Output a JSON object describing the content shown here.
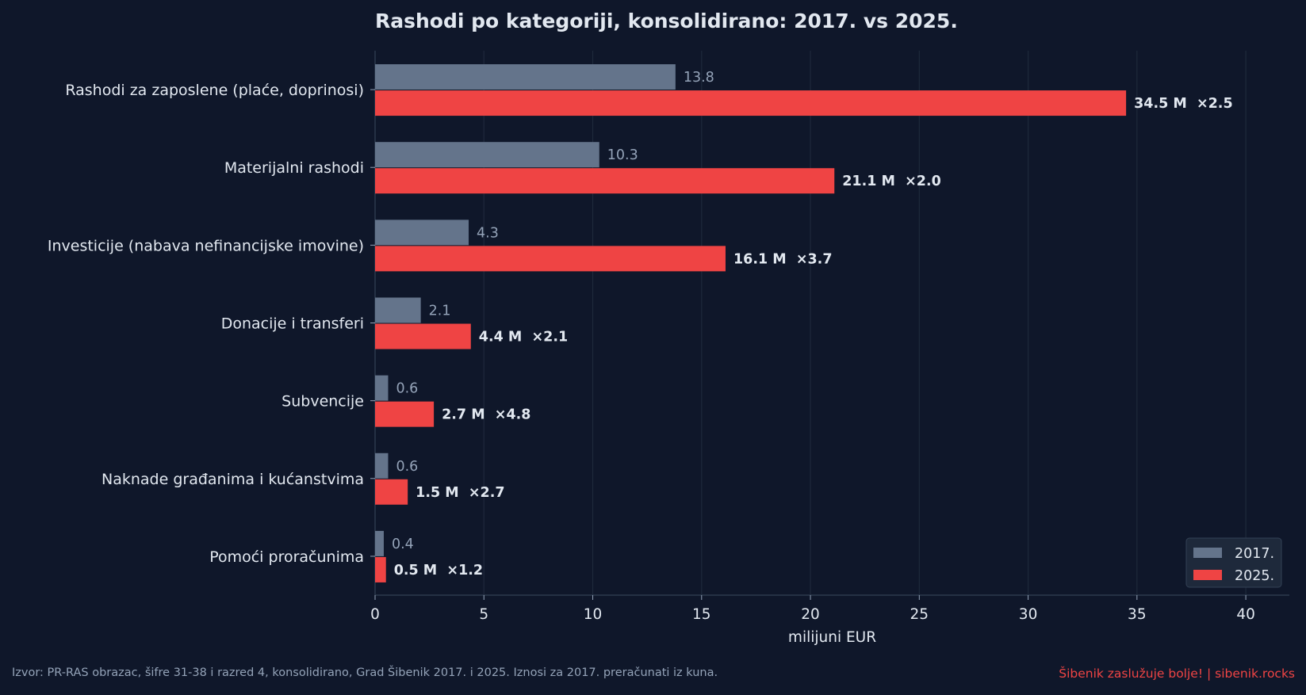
{
  "chart_data": {
    "type": "bar",
    "orientation": "horizontal",
    "title": "Rashodi po kategoriji, konsolidirano: 2017. vs 2025.",
    "xlabel": "milijuni EUR",
    "ylabel": "",
    "xlim": [
      0,
      42
    ],
    "xticks": [
      0,
      5,
      10,
      15,
      20,
      25,
      30,
      35,
      40
    ],
    "grid": "x",
    "legend_position": "lower-right",
    "categories": [
      "Rashodi za zaposlene (plaće, doprinosi)",
      "Materijalni rashodi",
      "Investicije (nabava nefinancijske imovine)",
      "Donacije i transferi",
      "Subvencije",
      "Naknade građanima i kućanstvima",
      "Pomoći proračunima"
    ],
    "series": [
      {
        "name": "2017.",
        "color": "#64748b",
        "values": [
          13.8,
          10.3,
          4.3,
          2.1,
          0.6,
          0.6,
          0.4
        ],
        "labels": [
          "13.8",
          "10.3",
          "4.3",
          "2.1",
          "0.6",
          "0.6",
          "0.4"
        ]
      },
      {
        "name": "2025.",
        "color": "#ef4444",
        "values": [
          34.5,
          21.1,
          16.1,
          4.4,
          2.7,
          1.5,
          0.5
        ],
        "labels": [
          "34.5 M  ×2.5",
          "21.1 M  ×2.0",
          "16.1 M  ×3.7",
          "4.4 M  ×2.1",
          "2.7 M  ×4.8",
          "1.5 M  ×2.7",
          "0.5 M  ×1.2"
        ]
      }
    ]
  },
  "footer": {
    "source": "Izvor: PR-RAS obrazac, šifre 31-38 i razred 4, konsolidirano, Grad Šibenik 2017. i 2025. Iznosi za 2017. preračunati iz kuna.",
    "brand": "Šibenik zaslužuje bolje!  |  sibenik.rocks"
  },
  "colors": {
    "background": "#0f172a",
    "grid": "#1e293b",
    "text": "#e2e8f0",
    "muted": "#94a3b8"
  }
}
